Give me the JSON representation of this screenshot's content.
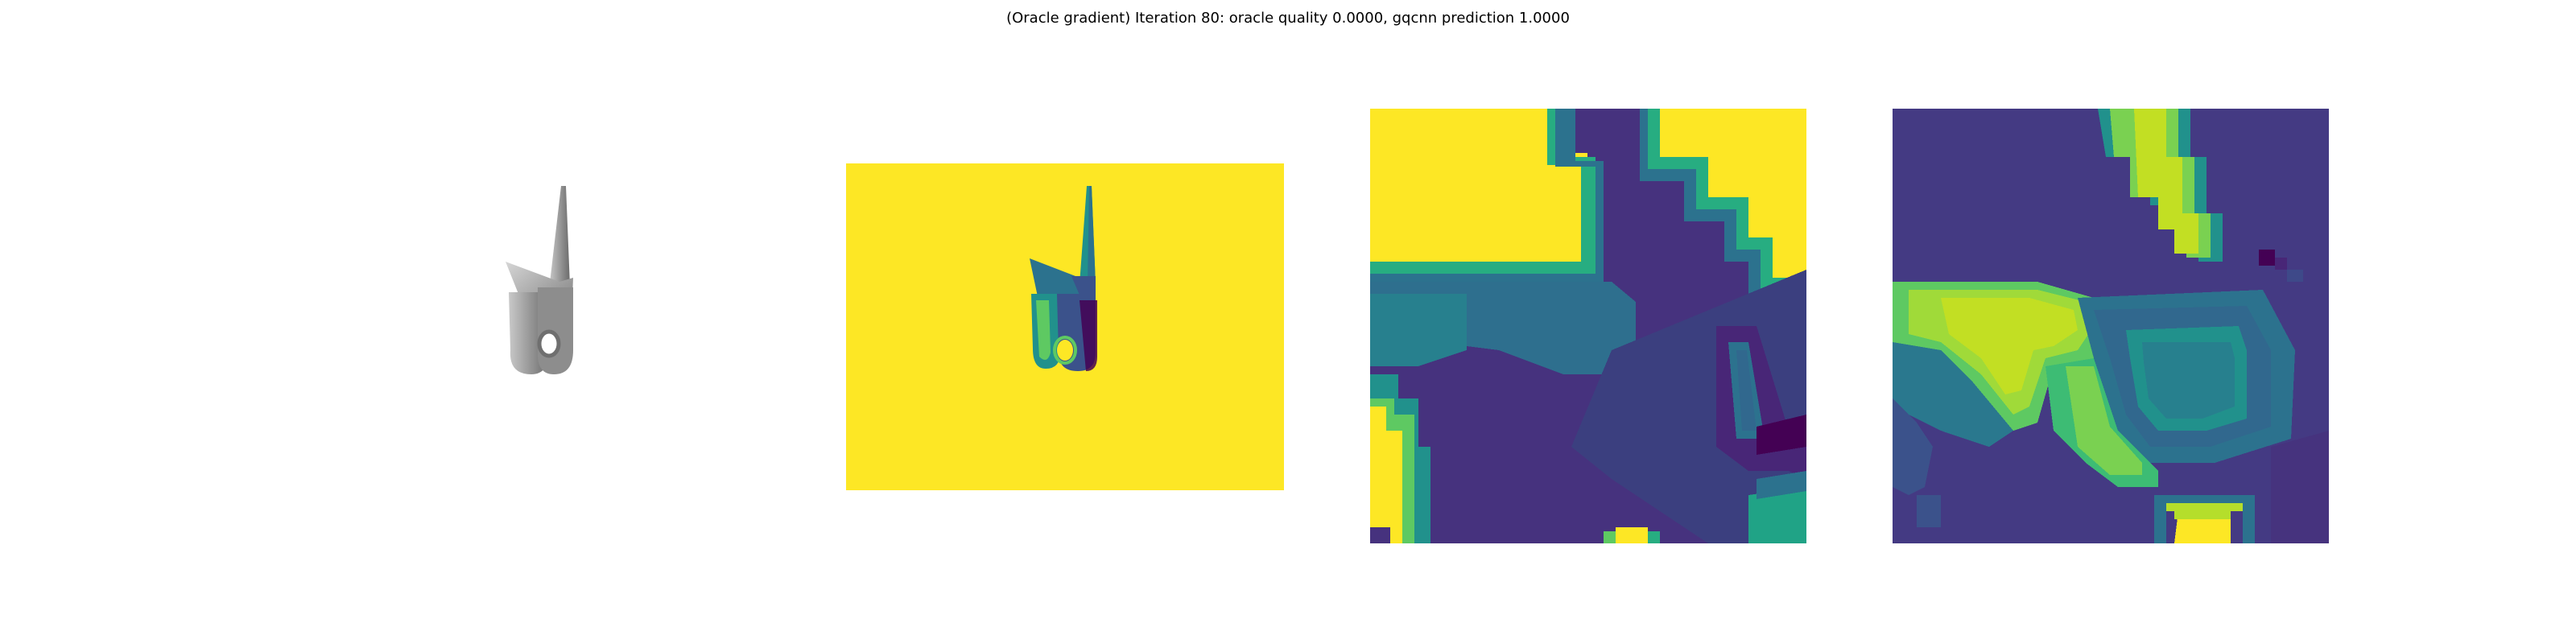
{
  "figure": {
    "title": "(Oracle gradient) Iteration 80: oracle quality 0.0000, gqcnn prediction 1.0000"
  },
  "colors": {
    "background": "#ffffff",
    "viridis_dark": "#440154",
    "viridis_indigo": "#3b528b",
    "viridis_teal": "#21918c",
    "viridis_green": "#5ec962",
    "viridis_yellow": "#fde725",
    "object_gray": "#8f8f8f"
  },
  "panels": [
    {
      "id": "rendered-object",
      "kind": "rgb-render"
    },
    {
      "id": "depth-image",
      "kind": "viridis-image"
    },
    {
      "id": "depth-crop",
      "kind": "viridis-image"
    },
    {
      "id": "gradient-crop",
      "kind": "viridis-image"
    }
  ]
}
